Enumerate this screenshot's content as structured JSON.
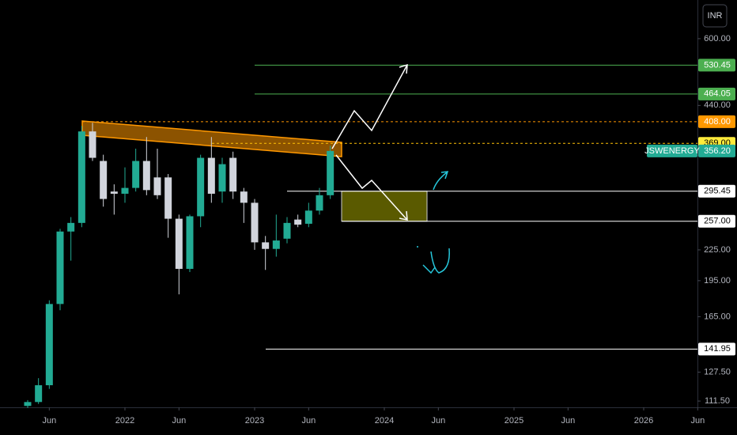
{
  "chart_data": {
    "type": "candlestick",
    "symbol": "JSWENERGY",
    "currency": "INR",
    "log_scale": true,
    "up_color": "#22ab94",
    "down_color": "#d1d4dc",
    "x": [
      "2021-04",
      "2021-05",
      "2021-06",
      "2021-07",
      "2021-08",
      "2021-09",
      "2021-10",
      "2021-11",
      "2021-12",
      "2022-01",
      "2022-02",
      "2022-03",
      "2022-04",
      "2022-05",
      "2022-06",
      "2022-07",
      "2022-08",
      "2022-09",
      "2022-10",
      "2022-11",
      "2022-12",
      "2023-01",
      "2023-02",
      "2023-03",
      "2023-04",
      "2023-05",
      "2023-06",
      "2023-07",
      "2023-08"
    ],
    "open": [
      109,
      111,
      120,
      175,
      245,
      255,
      390,
      340,
      295,
      292,
      300,
      340,
      315,
      315,
      260,
      206,
      263,
      345,
      295,
      345,
      295,
      280,
      233,
      226,
      237,
      259,
      254,
      270,
      290
    ],
    "high": [
      112,
      124,
      178,
      248,
      262,
      400,
      406,
      350,
      305,
      330,
      360,
      380,
      360,
      320,
      265,
      265,
      350,
      380,
      345,
      355,
      300,
      285,
      240,
      265,
      262,
      265,
      280,
      300,
      365
    ],
    "low": [
      108,
      110,
      118,
      170,
      214,
      250,
      340,
      275,
      265,
      280,
      295,
      290,
      285,
      238,
      183,
      203,
      250,
      280,
      280,
      285,
      255,
      225,
      205,
      218,
      232,
      250,
      250,
      265,
      285
    ],
    "close": [
      111,
      120,
      175,
      245,
      255,
      390,
      345,
      285,
      292,
      300,
      340,
      297,
      290,
      260,
      206,
      263,
      345,
      292,
      335,
      295,
      280,
      233,
      226,
      235,
      255,
      253,
      270,
      290,
      356.2
    ],
    "ylim": [
      108.3,
      718
    ],
    "yticks": [
      {
        "value": 600,
        "label": "600.00"
      },
      {
        "value": 440,
        "label": "440.00"
      },
      {
        "value": 225,
        "label": "225.00"
      },
      {
        "value": 195,
        "label": "195.00"
      },
      {
        "value": 165,
        "label": "165.00"
      },
      {
        "value": 127.5,
        "label": "127.50"
      },
      {
        "value": 111.5,
        "label": "111.50"
      }
    ],
    "xlim": [
      "2021-01",
      "2026-07"
    ],
    "xticks": [
      {
        "value": "2021-06",
        "label": "Jun"
      },
      {
        "value": "2022-01",
        "label": "2022"
      },
      {
        "value": "2022-06",
        "label": "Jun"
      },
      {
        "value": "2023-01",
        "label": "2023"
      },
      {
        "value": "2023-06",
        "label": "Jun"
      },
      {
        "value": "2024-01",
        "label": "2024"
      },
      {
        "value": "2024-06",
        "label": "Jun"
      },
      {
        "value": "2025-01",
        "label": "2025"
      },
      {
        "value": "2025-06",
        "label": "Jun"
      },
      {
        "value": "2026-01",
        "label": "2026"
      },
      {
        "value": "2026-06",
        "label": "Jun"
      }
    ],
    "price_lines": [
      {
        "value": 530.45,
        "label": "530.45",
        "color": "#4caf50"
      },
      {
        "value": 464.05,
        "label": "464.05",
        "color": "#4caf50"
      },
      {
        "value": 408,
        "label": "408.00",
        "color": "#ff9800"
      },
      {
        "value": 369,
        "label": "369.00",
        "color": "#ffeb3b"
      },
      {
        "value": 356.2,
        "label": "356.20",
        "color": "#22ab94"
      },
      {
        "value": 295.45,
        "label": "295.45",
        "color": "#ffffff"
      },
      {
        "value": 257,
        "label": "257.00",
        "color": "#ffffff"
      },
      {
        "value": 141.95,
        "label": "141.95",
        "color": "#ffffff"
      }
    ]
  }
}
